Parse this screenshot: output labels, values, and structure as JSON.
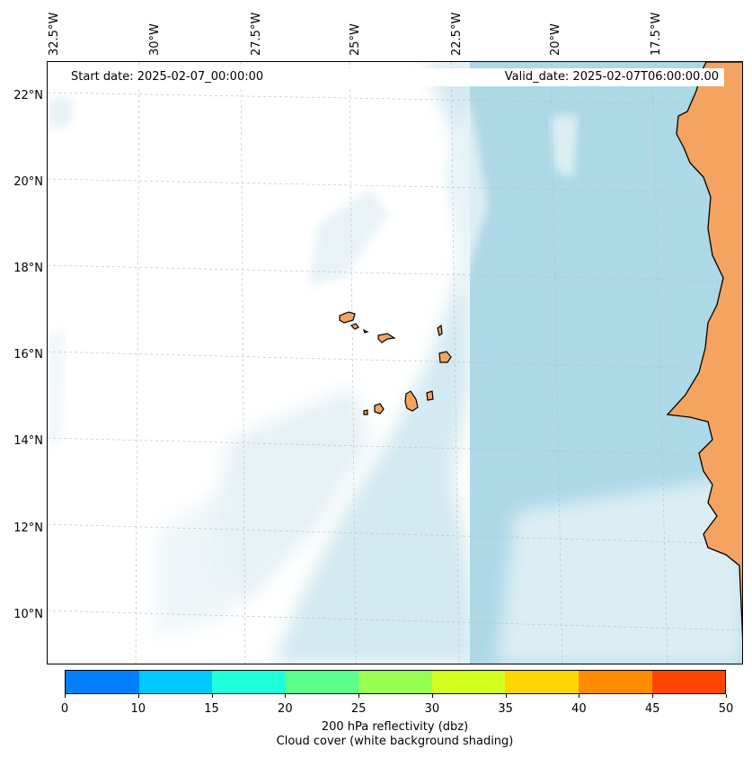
{
  "map": {
    "start_date": "Start date: 2025-02-07_00:00:00",
    "valid_date": "Valid_date: 2025-02-07T06:00:00.00",
    "lon_labels": [
      "32.5°W",
      "30°W",
      "27.5°W",
      "25°W",
      "22.5°W",
      "20°W",
      "17.5°W"
    ],
    "lat_labels": [
      "22°N",
      "20°N",
      "18°N",
      "16°N",
      "14°N",
      "12°N",
      "10°N"
    ],
    "land_color": "#f4a460",
    "coast_color": "#000000",
    "cloud_color": "#add8e6"
  },
  "colorbar": {
    "ticks": [
      "0",
      "10",
      "15",
      "20",
      "25",
      "30",
      "35",
      "40",
      "45",
      "50"
    ],
    "colors": [
      "#0080ff",
      "#00c8ff",
      "#1effdc",
      "#5aff8c",
      "#96ff50",
      "#d2ff1e",
      "#ffd700",
      "#ff8c00",
      "#ff4500"
    ],
    "title_line1": "200 hPa reflectivity (dbz)",
    "title_line2": "Cloud cover (white background shading)"
  }
}
